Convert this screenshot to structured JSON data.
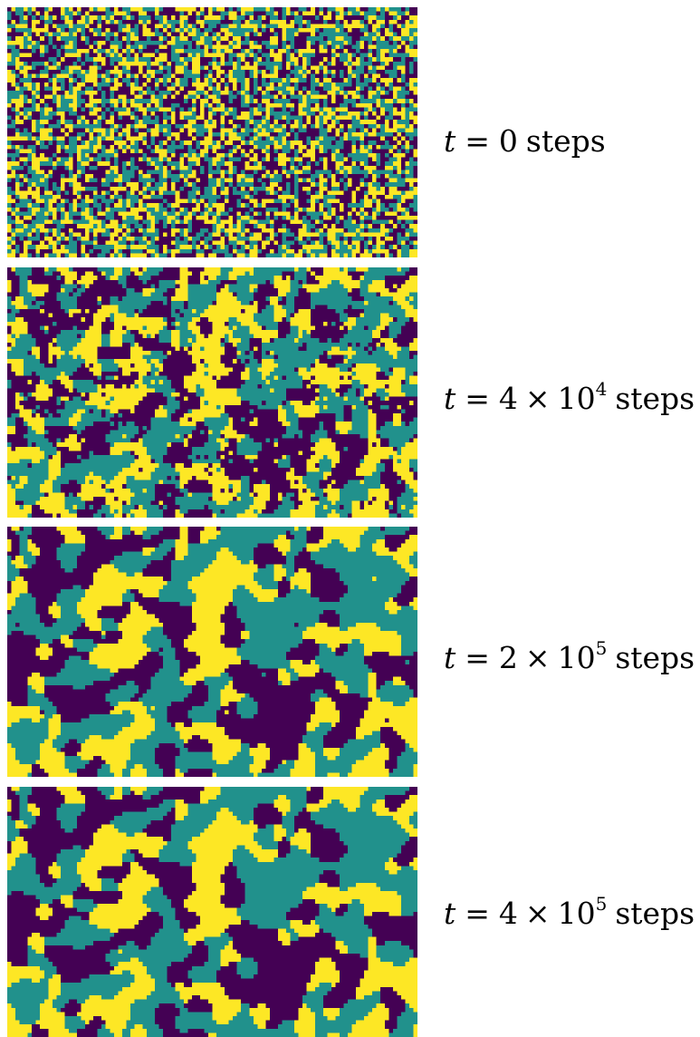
{
  "colors": {
    "state_a": "#440154",
    "state_b": "#21918c",
    "state_c": "#fde725",
    "background": "#ffffff"
  },
  "grid": {
    "columns": 100,
    "rows": 60
  },
  "panels": [
    {
      "variable": "t",
      "equals": "=",
      "mantissa": "0",
      "times": "",
      "base": "",
      "exponent": "",
      "unit": "steps",
      "coarsening_level": 0
    },
    {
      "variable": "t",
      "equals": "=",
      "mantissa": "4",
      "times": "×",
      "base": "10",
      "exponent": "4",
      "unit": "steps",
      "coarsening_level": 1
    },
    {
      "variable": "t",
      "equals": "=",
      "mantissa": "2",
      "times": "×",
      "base": "10",
      "exponent": "5",
      "unit": "steps",
      "coarsening_level": 2
    },
    {
      "variable": "t",
      "equals": "=",
      "mantissa": "4",
      "times": "×",
      "base": "10",
      "exponent": "5",
      "unit": "steps",
      "coarsening_level": 3
    }
  ]
}
